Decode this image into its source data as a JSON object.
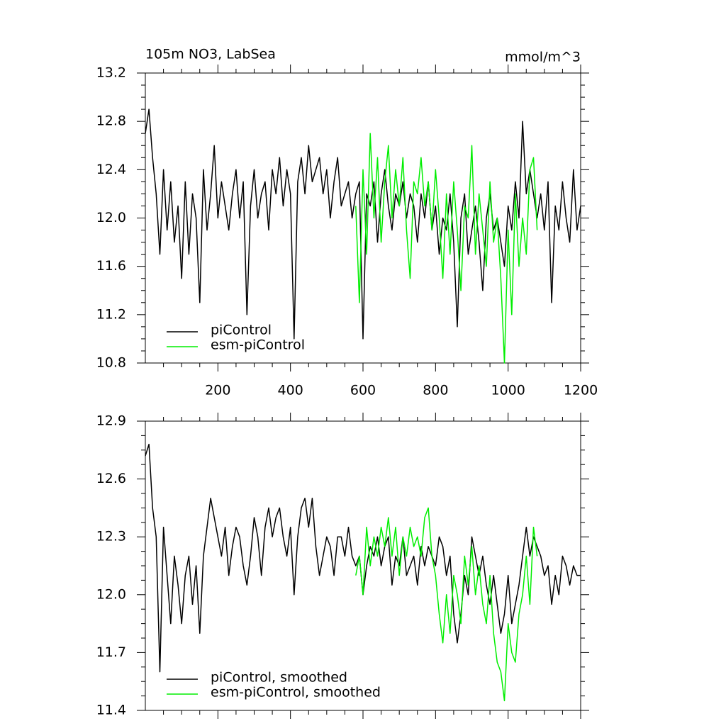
{
  "chart_data": [
    {
      "type": "line",
      "title": "105m NO3, LabSea",
      "units": "mmol/m^3",
      "xlim": [
        0,
        1200
      ],
      "xticks": [
        200,
        400,
        600,
        800,
        1000,
        1200
      ],
      "xtick_labels": true,
      "ylim": [
        10.8,
        13.2
      ],
      "yticks": [
        10.8,
        11.2,
        11.6,
        {
          "value": 12,
          "label": "12.0"
        },
        12.4,
        12.8,
        13.2
      ],
      "legend": "lower left",
      "series": [
        {
          "name": "piControl",
          "color": "#000000",
          "x": [
            0,
            10,
            20,
            30,
            40,
            50,
            60,
            70,
            80,
            90,
            100,
            110,
            120,
            130,
            140,
            150,
            160,
            170,
            180,
            190,
            200,
            210,
            220,
            230,
            240,
            250,
            260,
            270,
            280,
            290,
            300,
            310,
            320,
            330,
            340,
            350,
            360,
            370,
            380,
            390,
            400,
            410,
            420,
            430,
            440,
            450,
            460,
            470,
            480,
            490,
            500,
            510,
            520,
            530,
            540,
            550,
            560,
            570,
            580,
            590,
            600,
            610,
            620,
            630,
            640,
            650,
            660,
            670,
            680,
            690,
            700,
            710,
            720,
            730,
            740,
            750,
            760,
            770,
            780,
            790,
            800,
            810,
            820,
            830,
            840,
            850,
            860,
            870,
            880,
            890,
            900,
            910,
            920,
            930,
            940,
            950,
            960,
            970,
            980,
            990,
            1000,
            1010,
            1020,
            1030,
            1040,
            1050,
            1060,
            1070,
            1080,
            1090,
            1100,
            1110,
            1120,
            1130,
            1140,
            1150,
            1160,
            1170,
            1180,
            1190,
            1200
          ],
          "values": [
            12.7,
            12.9,
            12.5,
            12.2,
            11.7,
            12.4,
            11.9,
            12.3,
            11.8,
            12.1,
            11.5,
            12.3,
            11.7,
            12.2,
            12.0,
            11.3,
            12.4,
            11.9,
            12.2,
            12.6,
            12.0,
            12.3,
            12.1,
            11.9,
            12.2,
            12.4,
            12.0,
            12.3,
            11.2,
            12.1,
            12.4,
            12.0,
            12.2,
            12.3,
            11.9,
            12.4,
            12.2,
            12.5,
            12.1,
            12.4,
            12.2,
            11.0,
            12.3,
            12.5,
            12.2,
            12.6,
            12.3,
            12.4,
            12.5,
            12.2,
            12.4,
            12.0,
            12.3,
            12.5,
            12.1,
            12.2,
            12.3,
            12.0,
            12.2,
            12.3,
            11.0,
            12.2,
            12.1,
            12.3,
            11.8,
            12.2,
            12.4,
            12.1,
            11.9,
            12.2,
            12.1,
            12.3,
            12.0,
            12.2,
            12.1,
            11.8,
            12.2,
            12.0,
            12.3,
            11.9,
            12.1,
            11.7,
            12.0,
            11.9,
            12.2,
            11.8,
            11.1,
            12.0,
            12.2,
            11.7,
            11.9,
            12.1,
            11.8,
            11.4,
            12.0,
            12.2,
            11.9,
            12.0,
            11.8,
            11.6,
            12.1,
            11.9,
            12.3,
            12.0,
            12.8,
            12.2,
            12.4,
            12.2,
            12.0,
            12.2,
            11.9,
            12.3,
            11.3,
            12.1,
            11.9,
            12.3,
            12.0,
            11.8,
            12.4,
            11.9,
            12.1
          ]
        },
        {
          "name": "esm-piControl",
          "color": "#00ee00",
          "x": [
            580,
            590,
            600,
            610,
            620,
            630,
            640,
            650,
            660,
            670,
            680,
            690,
            700,
            710,
            720,
            730,
            740,
            750,
            760,
            770,
            780,
            790,
            800,
            810,
            820,
            830,
            840,
            850,
            860,
            870,
            880,
            890,
            900,
            910,
            920,
            930,
            940,
            950,
            960,
            970,
            980,
            990,
            1000,
            1010,
            1020,
            1030,
            1040,
            1050,
            1060,
            1070,
            1080
          ],
          "values": [
            12.1,
            11.3,
            12.4,
            11.7,
            12.7,
            12.0,
            12.5,
            11.8,
            12.3,
            12.6,
            12.0,
            12.4,
            12.1,
            12.5,
            11.9,
            11.5,
            12.3,
            12.2,
            12.5,
            12.1,
            12.3,
            11.9,
            12.4,
            12.0,
            11.5,
            12.2,
            11.7,
            12.3,
            11.9,
            11.4,
            12.1,
            12.0,
            12.6,
            11.7,
            12.2,
            11.9,
            11.6,
            12.3,
            11.8,
            12.0,
            11.5,
            10.8,
            11.9,
            11.2,
            12.2,
            11.6,
            12.0,
            11.7,
            12.4,
            12.5,
            11.9
          ]
        }
      ]
    },
    {
      "type": "line",
      "xlim": [
        0,
        1200
      ],
      "xticks": [
        200,
        400,
        600,
        800,
        1000,
        1200
      ],
      "xtick_labels": false,
      "ylim": [
        11.4,
        12.9
      ],
      "yticks": [
        11.4,
        11.7,
        {
          "value": 12,
          "label": "12.0"
        },
        12.3,
        12.6,
        12.9
      ],
      "legend": "lower left",
      "series": [
        {
          "name": "piControl, smoothed",
          "color": "#000000",
          "x": [
            0,
            10,
            20,
            30,
            40,
            50,
            60,
            70,
            80,
            90,
            100,
            110,
            120,
            130,
            140,
            150,
            160,
            170,
            180,
            190,
            200,
            210,
            220,
            230,
            240,
            250,
            260,
            270,
            280,
            290,
            300,
            310,
            320,
            330,
            340,
            350,
            360,
            370,
            380,
            390,
            400,
            410,
            420,
            430,
            440,
            450,
            460,
            470,
            480,
            490,
            500,
            510,
            520,
            530,
            540,
            550,
            560,
            570,
            580,
            590,
            600,
            610,
            620,
            630,
            640,
            650,
            660,
            670,
            680,
            690,
            700,
            710,
            720,
            730,
            740,
            750,
            760,
            770,
            780,
            790,
            800,
            810,
            820,
            830,
            840,
            850,
            860,
            870,
            880,
            890,
            900,
            910,
            920,
            930,
            940,
            950,
            960,
            970,
            980,
            990,
            1000,
            1010,
            1020,
            1030,
            1040,
            1050,
            1060,
            1070,
            1080,
            1090,
            1100,
            1110,
            1120,
            1130,
            1140,
            1150,
            1160,
            1170,
            1180,
            1190,
            1200
          ],
          "values": [
            12.72,
            12.78,
            12.45,
            12.3,
            11.6,
            12.35,
            12.1,
            11.85,
            12.2,
            12.05,
            11.85,
            12.1,
            12.2,
            11.95,
            12.15,
            11.8,
            12.2,
            12.35,
            12.5,
            12.4,
            12.3,
            12.2,
            12.35,
            12.1,
            12.25,
            12.35,
            12.3,
            12.15,
            12.05,
            12.2,
            12.4,
            12.3,
            12.1,
            12.35,
            12.45,
            12.3,
            12.4,
            12.45,
            12.3,
            12.2,
            12.35,
            12.0,
            12.3,
            12.45,
            12.5,
            12.35,
            12.5,
            12.25,
            12.1,
            12.2,
            12.3,
            12.25,
            12.1,
            12.3,
            12.3,
            12.2,
            12.35,
            12.2,
            12.15,
            12.2,
            12.0,
            12.15,
            12.25,
            12.2,
            12.3,
            12.15,
            12.25,
            12.3,
            12.05,
            12.2,
            12.15,
            12.3,
            12.1,
            12.15,
            12.2,
            12.05,
            12.25,
            12.15,
            12.25,
            12.2,
            12.15,
            12.3,
            12.25,
            12.1,
            12.2,
            11.9,
            11.75,
            11.9,
            12.1,
            12.0,
            12.3,
            12.2,
            12.1,
            12.2,
            12.05,
            11.95,
            12.1,
            11.95,
            11.8,
            11.9,
            12.1,
            11.85,
            11.95,
            12.05,
            12.2,
            12.35,
            12.2,
            12.3,
            12.25,
            12.2,
            12.1,
            12.15,
            11.95,
            12.1,
            12.0,
            12.2,
            12.15,
            12.05,
            12.15,
            12.1,
            12.1
          ]
        },
        {
          "name": "esm-piControl, smoothed",
          "color": "#00ee00",
          "x": [
            580,
            590,
            600,
            610,
            620,
            630,
            640,
            650,
            660,
            670,
            680,
            690,
            700,
            710,
            720,
            730,
            740,
            750,
            760,
            770,
            780,
            790,
            800,
            810,
            820,
            830,
            840,
            850,
            860,
            870,
            880,
            890,
            900,
            910,
            920,
            930,
            940,
            950,
            960,
            970,
            980,
            990,
            1000,
            1010,
            1020,
            1030,
            1040,
            1050,
            1060,
            1070,
            1080
          ],
          "values": [
            12.1,
            12.2,
            12.0,
            12.35,
            12.15,
            12.3,
            12.2,
            12.35,
            12.25,
            12.4,
            12.2,
            12.35,
            12.1,
            12.3,
            12.2,
            12.35,
            12.25,
            12.3,
            12.2,
            12.4,
            12.45,
            12.2,
            12.1,
            11.9,
            11.75,
            12.0,
            11.8,
            12.1,
            12.0,
            11.85,
            12.2,
            12.05,
            12.25,
            12.0,
            12.15,
            11.95,
            11.85,
            12.1,
            11.8,
            11.65,
            11.6,
            11.45,
            11.85,
            11.7,
            11.65,
            11.9,
            12.0,
            12.2,
            11.95,
            12.35,
            12.2
          ]
        }
      ]
    }
  ]
}
